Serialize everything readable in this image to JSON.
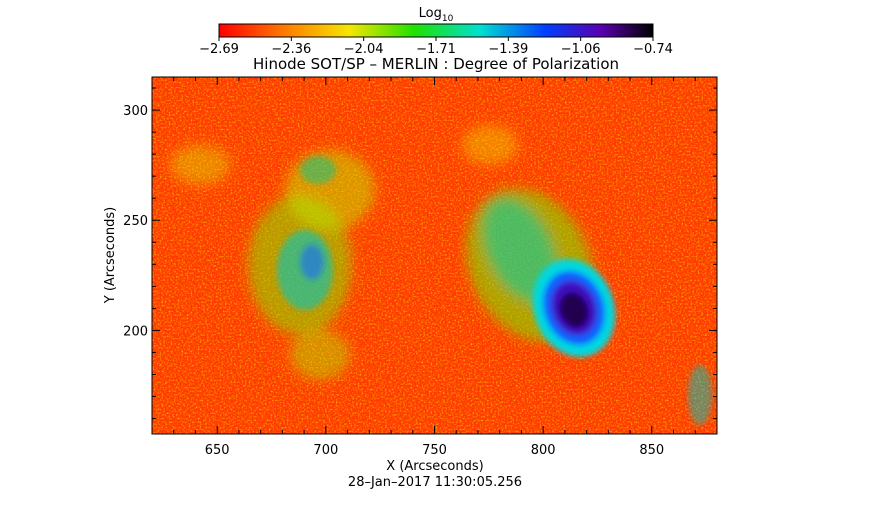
{
  "chart_data": {
    "type": "heatmap",
    "title": "Hinode SOT/SP – MERLIN : Degree of Polarization",
    "xlabel": "X (Arcseconds)",
    "ylabel": "Y (Arcseconds)",
    "xlim": [
      620,
      880
    ],
    "ylim": [
      153,
      315
    ],
    "x_ticks": [
      650,
      700,
      750,
      800,
      850
    ],
    "y_ticks": [
      200,
      250,
      300
    ],
    "colorbar": {
      "label_base": "Log",
      "label_sub": "10",
      "range": [
        -2.69,
        -0.74
      ],
      "tick_labels": [
        "−2.69",
        "−2.36",
        "−2.04",
        "−1.71",
        "−1.39",
        "−1.06",
        "−0.74"
      ],
      "colormap": "rainbow (red → yellow → green → cyan → blue → black)"
    },
    "features": [
      {
        "name": "sunspot core",
        "x": 810,
        "y": 210,
        "log_value": -0.85
      },
      {
        "name": "penumbra / plage",
        "x": 785,
        "y": 225,
        "log_value": -1.7
      },
      {
        "name": "network plage",
        "x": 695,
        "y": 222,
        "log_value": -1.6
      },
      {
        "name": "quiet sun background",
        "log_value": -2.5
      }
    ]
  },
  "footer": {
    "timestamp": "28–Jan–2017 11:30:05.256"
  }
}
